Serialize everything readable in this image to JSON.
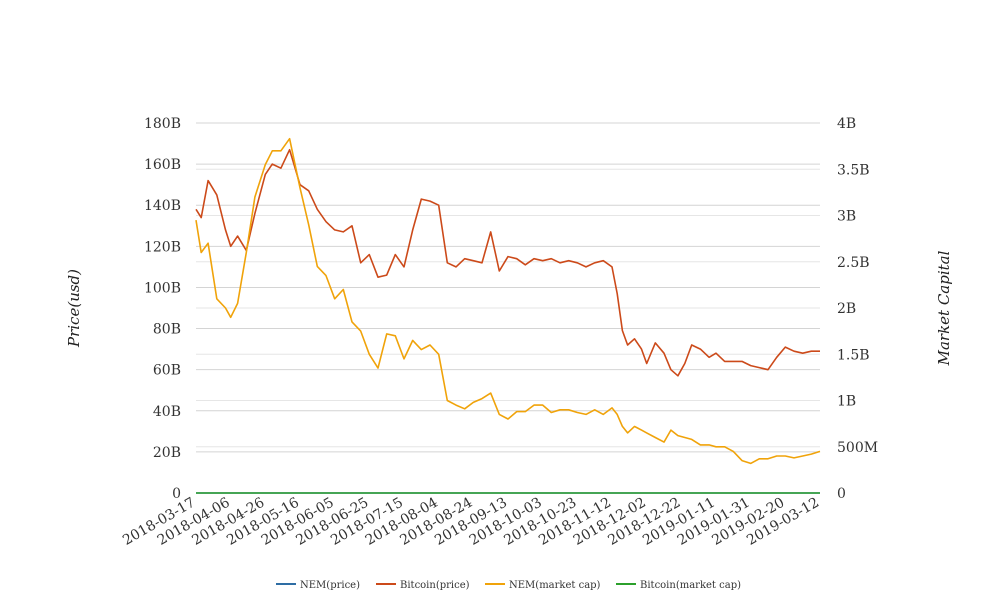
{
  "chart_data": {
    "type": "line",
    "ylabel_left": "Price(usd)",
    "ylabel_right": "Market Capital",
    "yticks_left": [
      "0",
      "20B",
      "40B",
      "60B",
      "80B",
      "100B",
      "120B",
      "140B",
      "160B",
      "180B"
    ],
    "yticks_right": [
      "0",
      "500M",
      "1B",
      "1.5B",
      "2B",
      "2.5B",
      "3B",
      "3.5B",
      "4B"
    ],
    "ylim_left": [
      0,
      180
    ],
    "ylim_right": [
      0,
      4
    ],
    "x_ticks": [
      "2018-03-17",
      "2018-04-06",
      "2018-04-26",
      "2018-05-16",
      "2018-06-05",
      "2018-06-25",
      "2018-07-15",
      "2018-08-04",
      "2018-08-24",
      "2018-09-13",
      "2018-10-03",
      "2018-10-23",
      "2018-11-12",
      "2018-12-02",
      "2018-12-22",
      "2019-01-11",
      "2019-01-31",
      "2019-02-20",
      "2019-03-12"
    ],
    "xlim": [
      "2018-03-17",
      "2019-03-12"
    ],
    "grid": true,
    "legend_position": "bottom",
    "series": [
      {
        "name": "NEM(price)",
        "axis": "left",
        "color": "#2e6da4",
        "x": [
          "2018-03-17",
          "2019-03-12"
        ],
        "y": [
          0,
          0
        ]
      },
      {
        "name": "Bitcoin(price)",
        "axis": "left",
        "color": "#cc4a1a",
        "x": [
          "2018-03-17",
          "2018-03-20",
          "2018-03-24",
          "2018-03-29",
          "2018-04-03",
          "2018-04-06",
          "2018-04-10",
          "2018-04-15",
          "2018-04-20",
          "2018-04-26",
          "2018-04-30",
          "2018-05-05",
          "2018-05-10",
          "2018-05-16",
          "2018-05-21",
          "2018-05-26",
          "2018-05-31",
          "2018-06-05",
          "2018-06-10",
          "2018-06-15",
          "2018-06-20",
          "2018-06-25",
          "2018-06-30",
          "2018-07-05",
          "2018-07-10",
          "2018-07-15",
          "2018-07-20",
          "2018-07-25",
          "2018-07-30",
          "2018-08-04",
          "2018-08-09",
          "2018-08-14",
          "2018-08-19",
          "2018-08-24",
          "2018-08-29",
          "2018-09-03",
          "2018-09-08",
          "2018-09-13",
          "2018-09-18",
          "2018-09-23",
          "2018-09-28",
          "2018-10-03",
          "2018-10-08",
          "2018-10-13",
          "2018-10-18",
          "2018-10-23",
          "2018-10-28",
          "2018-11-02",
          "2018-11-07",
          "2018-11-12",
          "2018-11-15",
          "2018-11-18",
          "2018-11-21",
          "2018-11-25",
          "2018-11-29",
          "2018-12-02",
          "2018-12-07",
          "2018-12-12",
          "2018-12-16",
          "2018-12-20",
          "2018-12-24",
          "2018-12-28",
          "2019-01-02",
          "2019-01-07",
          "2019-01-11",
          "2019-01-16",
          "2019-01-21",
          "2019-01-26",
          "2019-01-31",
          "2019-02-05",
          "2019-02-10",
          "2019-02-15",
          "2019-02-20",
          "2019-02-25",
          "2019-03-02",
          "2019-03-07",
          "2019-03-12"
        ],
        "y": [
          138,
          134,
          152,
          145,
          128,
          120,
          125,
          118,
          136,
          155,
          160,
          158,
          167,
          150,
          147,
          138,
          132,
          128,
          127,
          130,
          112,
          116,
          105,
          106,
          116,
          110,
          128,
          143,
          142,
          140,
          112,
          110,
          114,
          113,
          112,
          127,
          108,
          115,
          114,
          111,
          114,
          113,
          114,
          112,
          113,
          112,
          110,
          112,
          113,
          110,
          97,
          79,
          72,
          75,
          70,
          63,
          73,
          68,
          60,
          57,
          63,
          72,
          70,
          66,
          68,
          64,
          64,
          64,
          62,
          61,
          60,
          66,
          71,
          69,
          68,
          69,
          69
        ]
      },
      {
        "name": "NEM(market cap)",
        "axis": "right",
        "color": "#f0a30a",
        "x": [
          "2018-03-17",
          "2018-03-20",
          "2018-03-24",
          "2018-03-29",
          "2018-04-03",
          "2018-04-06",
          "2018-04-10",
          "2018-04-15",
          "2018-04-20",
          "2018-04-26",
          "2018-04-30",
          "2018-05-05",
          "2018-05-10",
          "2018-05-16",
          "2018-05-21",
          "2018-05-26",
          "2018-05-31",
          "2018-06-05",
          "2018-06-10",
          "2018-06-15",
          "2018-06-20",
          "2018-06-25",
          "2018-06-30",
          "2018-07-05",
          "2018-07-10",
          "2018-07-15",
          "2018-07-20",
          "2018-07-25",
          "2018-07-30",
          "2018-08-04",
          "2018-08-09",
          "2018-08-14",
          "2018-08-19",
          "2018-08-24",
          "2018-08-29",
          "2018-09-03",
          "2018-09-08",
          "2018-09-13",
          "2018-09-18",
          "2018-09-23",
          "2018-09-28",
          "2018-10-03",
          "2018-10-08",
          "2018-10-13",
          "2018-10-18",
          "2018-10-23",
          "2018-10-28",
          "2018-11-02",
          "2018-11-07",
          "2018-11-12",
          "2018-11-15",
          "2018-11-18",
          "2018-11-21",
          "2018-11-25",
          "2018-11-29",
          "2018-12-02",
          "2018-12-07",
          "2018-12-12",
          "2018-12-16",
          "2018-12-20",
          "2018-12-24",
          "2018-12-28",
          "2019-01-02",
          "2019-01-07",
          "2019-01-11",
          "2019-01-16",
          "2019-01-21",
          "2019-01-26",
          "2019-01-31",
          "2019-02-05",
          "2019-02-10",
          "2019-02-15",
          "2019-02-20",
          "2019-02-25",
          "2019-03-02",
          "2019-03-07",
          "2019-03-12"
        ],
        "y": [
          2.95,
          2.6,
          2.7,
          2.1,
          2.0,
          1.9,
          2.05,
          2.6,
          3.2,
          3.55,
          3.7,
          3.7,
          3.83,
          3.3,
          2.9,
          2.45,
          2.35,
          2.1,
          2.2,
          1.85,
          1.75,
          1.5,
          1.35,
          1.72,
          1.7,
          1.45,
          1.65,
          1.55,
          1.6,
          1.5,
          1.0,
          0.95,
          0.91,
          0.98,
          1.02,
          1.08,
          0.85,
          0.8,
          0.88,
          0.88,
          0.95,
          0.95,
          0.87,
          0.9,
          0.9,
          0.87,
          0.85,
          0.9,
          0.85,
          0.92,
          0.85,
          0.72,
          0.65,
          0.72,
          0.68,
          0.65,
          0.6,
          0.55,
          0.68,
          0.62,
          0.6,
          0.58,
          0.52,
          0.52,
          0.5,
          0.5,
          0.45,
          0.35,
          0.32,
          0.37,
          0.37,
          0.4,
          0.4,
          0.38,
          0.4,
          0.42,
          0.45
        ]
      },
      {
        "name": "Bitcoin(market cap)",
        "axis": "right",
        "color": "#2ca02c",
        "x": [
          "2018-03-17",
          "2019-03-12"
        ],
        "y": [
          0,
          0
        ]
      }
    ]
  }
}
